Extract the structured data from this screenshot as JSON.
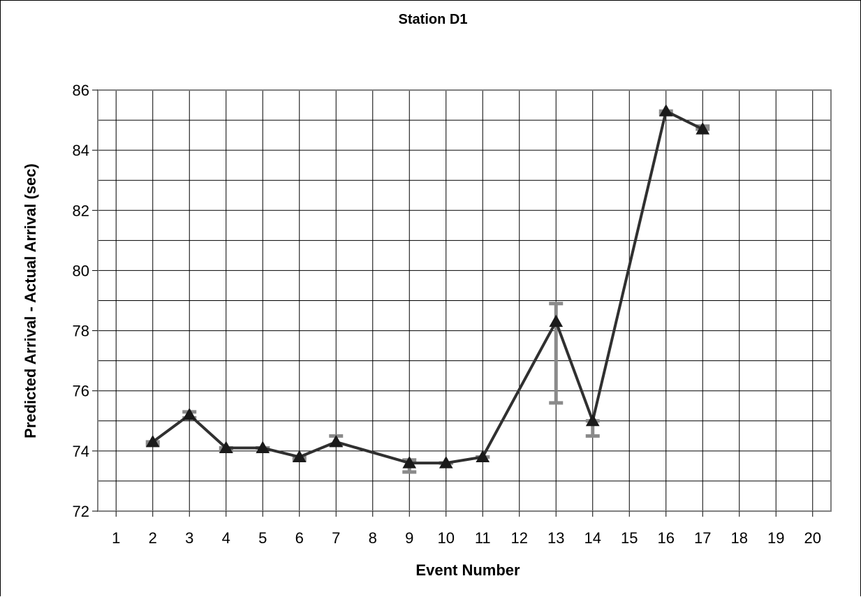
{
  "chart_data": {
    "type": "line",
    "title": "Station D1",
    "xlabel": "Event Number",
    "ylabel": "Predicted Arrival - Actual Arrival (sec)",
    "xlim": [
      1,
      20
    ],
    "ylim": [
      72,
      86
    ],
    "xticks": [
      "1",
      "2",
      "3",
      "4",
      "5",
      "6",
      "7",
      "8",
      "9",
      "10",
      "11",
      "12",
      "13",
      "14",
      "15",
      "16",
      "17",
      "18",
      "19",
      "20"
    ],
    "yticks": [
      "72",
      "74",
      "76",
      "78",
      "80",
      "82",
      "84",
      "86"
    ],
    "grid": true,
    "legend": "none",
    "line_color": "#303030",
    "errorbar_color": "#8a8a8a",
    "marker": "triangle",
    "series": [
      {
        "x": [
          2,
          3,
          4,
          5,
          6,
          7,
          9,
          10,
          11,
          13,
          14,
          16,
          17
        ],
        "y": [
          74.3,
          75.2,
          74.1,
          74.1,
          73.8,
          74.3,
          73.6,
          73.6,
          73.8,
          78.3,
          75.0,
          85.3,
          84.7
        ],
        "err_low": [
          74.2,
          75.1,
          74.0,
          74.1,
          73.7,
          74.2,
          73.3,
          73.6,
          73.8,
          75.6,
          74.5,
          85.2,
          84.7
        ],
        "err_high": [
          74.3,
          75.3,
          74.1,
          74.1,
          73.8,
          74.5,
          73.7,
          73.6,
          73.8,
          78.9,
          75.0,
          85.3,
          84.8
        ]
      }
    ]
  }
}
